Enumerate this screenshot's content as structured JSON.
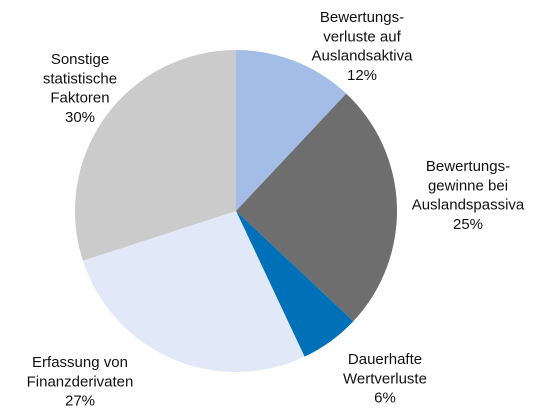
{
  "chart_data": {
    "type": "pie",
    "categories": [
      [
        "Bewertungs-",
        "verluste auf",
        "Auslandsaktiva"
      ],
      [
        "Bewertungs-",
        "gewinne bei",
        "Auslandspassiva"
      ],
      [
        "Dauerhafte",
        "Wertverluste"
      ],
      [
        "Erfassung von",
        "Finanzderivaten"
      ],
      [
        "Sonstige",
        "statistische",
        "Faktoren"
      ]
    ],
    "values": [
      12,
      25,
      6,
      27,
      30
    ],
    "value_labels": [
      "12%",
      "25%",
      "6%",
      "27%",
      "30%"
    ],
    "colors": [
      "#a4bde6",
      "#6e6e6e",
      "#0070b8",
      "#e1e8f7",
      "#cbcbcb"
    ]
  }
}
